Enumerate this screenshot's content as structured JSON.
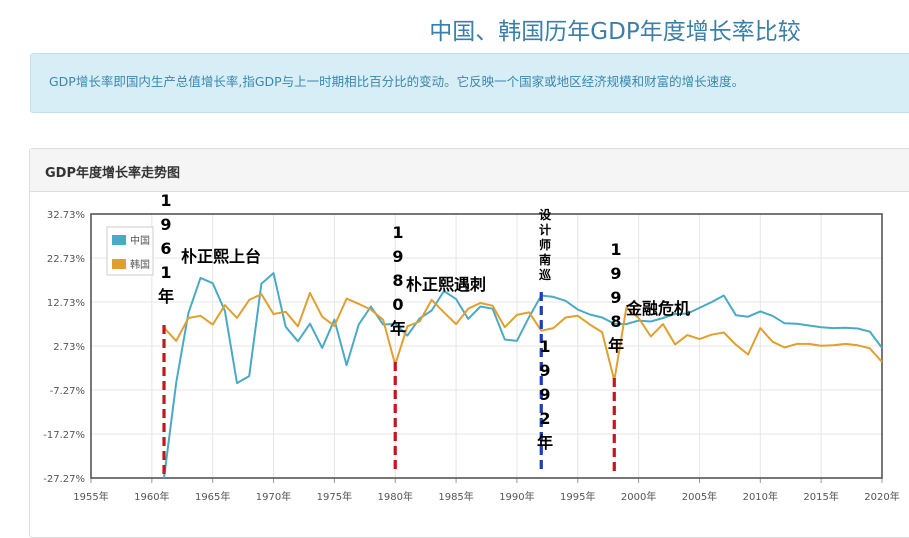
{
  "page": {
    "title": "中国、韩国历年GDP年度增长率比较",
    "description": "GDP增长率即国内生产总值增长率,指GDP与上一时期相比百分比的变动。它反映一个国家或地区经济规模和财富的增长速度。"
  },
  "panel": {
    "title": "GDP年度增长率走势图"
  },
  "chart_data": {
    "type": "line",
    "x": [
      1961,
      1962,
      1963,
      1964,
      1965,
      1966,
      1967,
      1968,
      1969,
      1970,
      1971,
      1972,
      1973,
      1974,
      1975,
      1976,
      1977,
      1978,
      1979,
      1980,
      1981,
      1982,
      1983,
      1984,
      1985,
      1986,
      1987,
      1988,
      1989,
      1990,
      1991,
      1992,
      1993,
      1994,
      1995,
      1996,
      1997,
      1998,
      1999,
      2000,
      2001,
      2002,
      2003,
      2004,
      2005,
      2006,
      2007,
      2008,
      2009,
      2010,
      2011,
      2012,
      2013,
      2014,
      2015,
      2016,
      2017,
      2018,
      2019,
      2020
    ],
    "series": [
      {
        "name": "中国",
        "color": "#4aaac6",
        "values": [
          -27.3,
          -5.6,
          10.2,
          18.2,
          17.0,
          10.7,
          -5.7,
          -4.1,
          16.9,
          19.3,
          7.1,
          3.8,
          7.8,
          2.3,
          8.7,
          -1.6,
          7.6,
          11.7,
          7.6,
          7.8,
          5.1,
          9.0,
          10.8,
          15.2,
          13.4,
          8.9,
          11.7,
          11.2,
          4.2,
          3.9,
          9.3,
          14.2,
          13.9,
          13.0,
          11.0,
          9.9,
          9.2,
          7.8,
          7.7,
          8.5,
          8.3,
          9.1,
          10.0,
          10.1,
          11.4,
          12.7,
          14.2,
          9.7,
          9.4,
          10.6,
          9.6,
          7.9,
          7.8,
          7.4,
          7.0,
          6.8,
          6.9,
          6.7,
          6.0,
          2.3
        ]
      },
      {
        "name": "韩国",
        "color": "#e0a030",
        "values": [
          6.9,
          3.9,
          9.1,
          9.6,
          7.6,
          12.0,
          9.1,
          13.2,
          14.5,
          10.0,
          10.5,
          7.2,
          14.8,
          9.4,
          7.3,
          13.5,
          12.3,
          11.0,
          8.7,
          -1.5,
          7.2,
          8.3,
          13.2,
          10.4,
          7.7,
          11.2,
          12.5,
          11.9,
          7.0,
          9.8,
          10.4,
          6.2,
          6.8,
          9.2,
          9.6,
          7.6,
          5.9,
          -5.1,
          11.5,
          9.1,
          4.9,
          7.7,
          3.1,
          5.2,
          4.3,
          5.3,
          5.8,
          3.0,
          0.8,
          6.8,
          3.7,
          2.4,
          3.2,
          3.2,
          2.8,
          2.9,
          3.2,
          2.9,
          2.2,
          -0.9
        ]
      }
    ],
    "y_ticks": [
      "32.73%",
      "22.73%",
      "12.73%",
      "2.73%",
      "-7.27%",
      "-17.27%",
      "-27.27%"
    ],
    "x_ticks": [
      "1955年",
      "1960年",
      "1965年",
      "1970年",
      "1975年",
      "1980年",
      "1985年",
      "1990年",
      "1995年",
      "2000年",
      "2005年",
      "2010年",
      "2015年",
      "2020年"
    ],
    "xlim": [
      1955,
      2020
    ],
    "ylim": [
      -27.27,
      32.73
    ],
    "grid": true,
    "legend_position": "top-left",
    "annotations": [
      {
        "year_text": "1961年",
        "label": "朴正熙上台"
      },
      {
        "year_text": "1980年",
        "label": "朴正熙遇刺"
      },
      {
        "year_text": "设计师南巡",
        "label": "1992年"
      },
      {
        "year_text": "1998年",
        "label": "金融危机"
      }
    ]
  }
}
